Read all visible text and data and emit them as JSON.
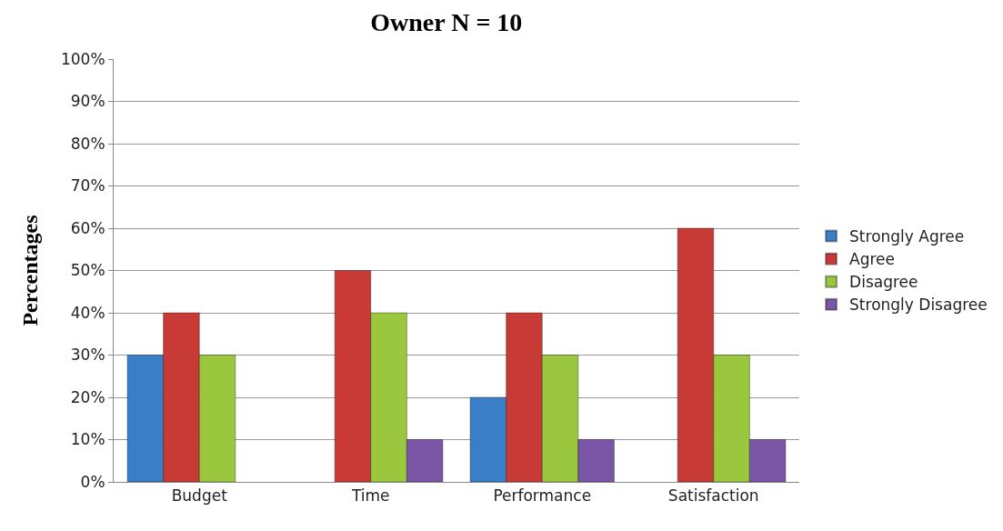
{
  "chart_data": {
    "type": "bar",
    "title": "Owner N = 10",
    "ylabel": "Percentages",
    "categories": [
      "Budget",
      "Time",
      "Performance",
      "Satisfaction"
    ],
    "series": [
      {
        "name": "Strongly Agree",
        "color": "#3a7ec8",
        "values": [
          30,
          null,
          20,
          null
        ]
      },
      {
        "name": "Agree",
        "color": "#c83a36",
        "values": [
          40,
          50,
          40,
          60
        ]
      },
      {
        "name": "Disagree",
        "color": "#9bc73e",
        "values": [
          30,
          40,
          30,
          30
        ]
      },
      {
        "name": "Strongly Disagree",
        "color": "#7b55a6",
        "values": [
          null,
          10,
          10,
          10
        ]
      }
    ],
    "ylim": [
      0,
      100
    ],
    "yticks": [
      {
        "value": 0,
        "label": "0%"
      },
      {
        "value": 10,
        "label": "10%"
      },
      {
        "value": 20,
        "label": "20%"
      },
      {
        "value": 30,
        "label": "30%"
      },
      {
        "value": 40,
        "label": "40%"
      },
      {
        "value": 50,
        "label": "50%"
      },
      {
        "value": 60,
        "label": "60%"
      },
      {
        "value": 70,
        "label": "70%"
      },
      {
        "value": 80,
        "label": "80%"
      },
      {
        "value": 90,
        "label": "90%"
      },
      {
        "value": 100,
        "label": "100%"
      }
    ],
    "grid": "y",
    "legend": "right"
  }
}
